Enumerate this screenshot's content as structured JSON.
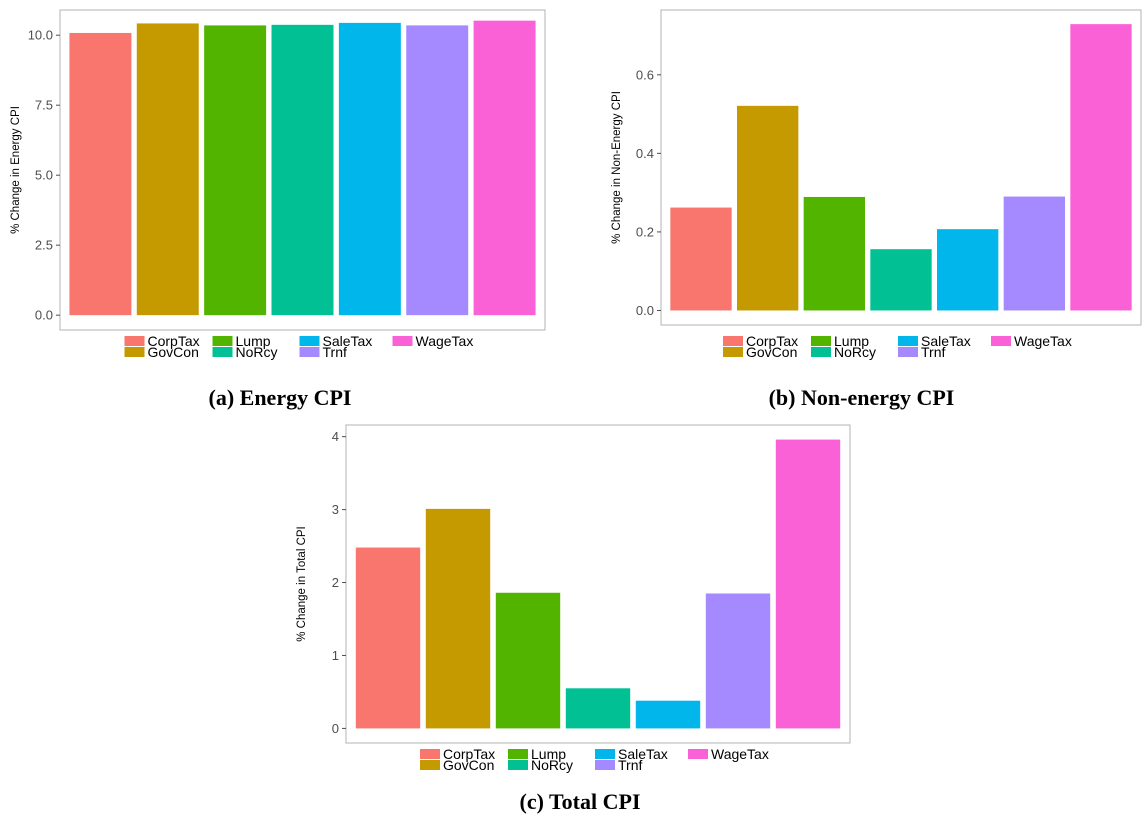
{
  "colors": {
    "CorpTax": "#F8766D",
    "GovCon": "#C49A00",
    "Lump": "#53B400",
    "NoRcy": "#00C094",
    "SaleTax": "#00B6EB",
    "Trnf": "#A58AFF",
    "WageTax": "#FB61D7"
  },
  "legend": {
    "top_row": [
      "CorpTax",
      "Lump",
      "SaleTax",
      "WageTax"
    ],
    "bottom_row": [
      "GovCon",
      "NoRcy",
      "Trnf"
    ]
  },
  "captions": {
    "a": "(a) Energy CPI",
    "b": "(b) Non-energy CPI",
    "c": "(c) Total CPI"
  },
  "chart_data": [
    {
      "id": "a",
      "type": "bar",
      "categories": [
        "CorpTax",
        "GovCon",
        "Lump",
        "NoRcy",
        "SaleTax",
        "Trnf",
        "WageTax"
      ],
      "values": [
        10.08,
        10.42,
        10.35,
        10.37,
        10.44,
        10.35,
        10.52
      ],
      "ylabel": "% Change in Energy CPI",
      "xlabel": "",
      "ylim": [
        -0.53,
        10.9
      ],
      "yticks": [
        0.0,
        2.5,
        5.0,
        7.5,
        10.0
      ],
      "ytick_labels": [
        "0.0",
        "2.5",
        "5.0",
        "7.5",
        "10.0"
      ],
      "grid": false,
      "legend_position": "bottom"
    },
    {
      "id": "b",
      "type": "bar",
      "categories": [
        "CorpTax",
        "GovCon",
        "Lump",
        "NoRcy",
        "SaleTax",
        "Trnf",
        "WageTax"
      ],
      "values": [
        0.262,
        0.521,
        0.289,
        0.156,
        0.207,
        0.29,
        0.729
      ],
      "ylabel": "% Change in Non-Energy CPI",
      "xlabel": "",
      "ylim": [
        -0.037,
        0.765
      ],
      "yticks": [
        0.0,
        0.2,
        0.4,
        0.6
      ],
      "ytick_labels": [
        "0.0",
        "0.2",
        "0.4",
        "0.6"
      ],
      "grid": false,
      "legend_position": "bottom"
    },
    {
      "id": "c",
      "type": "bar",
      "categories": [
        "CorpTax",
        "GovCon",
        "Lump",
        "NoRcy",
        "SaleTax",
        "Trnf",
        "WageTax"
      ],
      "values": [
        2.48,
        3.01,
        1.86,
        0.55,
        0.38,
        1.85,
        3.96
      ],
      "ylabel": "% Change in Total CPI",
      "xlabel": "",
      "ylim": [
        -0.2,
        4.16
      ],
      "yticks": [
        0,
        1,
        2,
        3,
        4
      ],
      "ytick_labels": [
        "0",
        "1",
        "2",
        "3",
        "4"
      ],
      "grid": false,
      "legend_position": "bottom"
    }
  ]
}
